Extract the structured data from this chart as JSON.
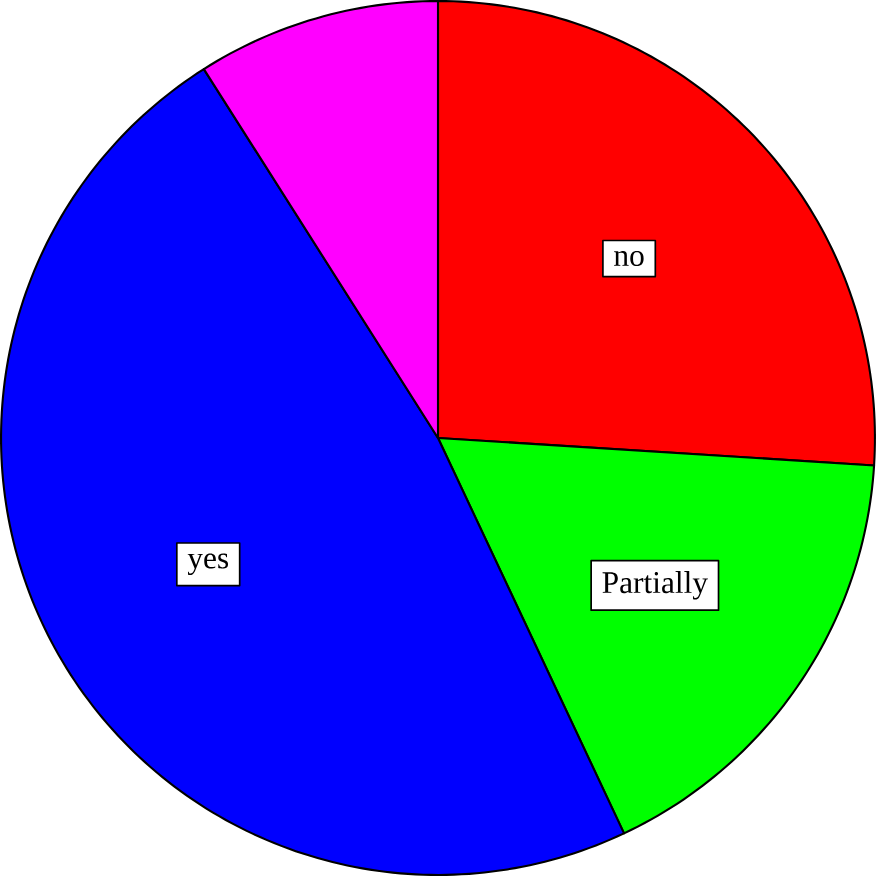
{
  "chart_data": {
    "type": "pie",
    "categories": [
      "no",
      "Partially",
      "yes",
      null
    ],
    "values": [
      26,
      17,
      48,
      9
    ],
    "colors": [
      "#ff0000",
      "#00ff00",
      "#0000ff",
      "#ff00ff"
    ]
  }
}
